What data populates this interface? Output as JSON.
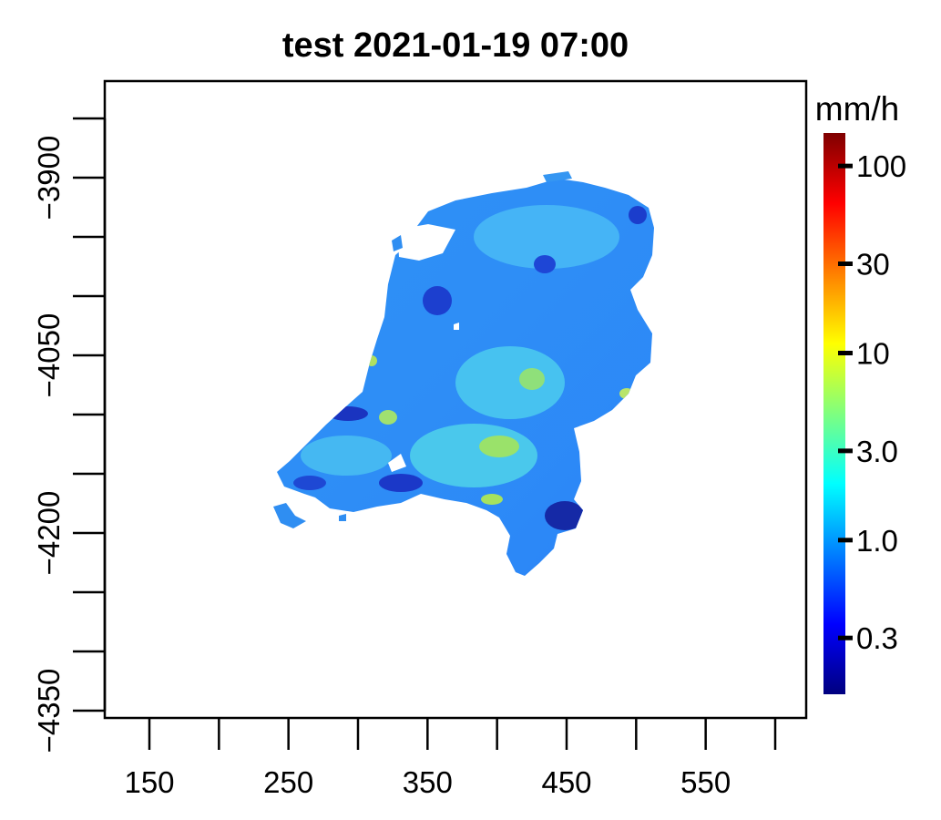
{
  "chart_data": {
    "type": "heatmap",
    "title": "test 2021-01-19 07:00",
    "xlabel": "",
    "ylabel": "",
    "x_ticks": [
      150,
      200,
      250,
      300,
      350,
      400,
      450,
      500,
      550,
      600
    ],
    "x_tick_labels": [
      "150",
      "250",
      "350",
      "450",
      "550"
    ],
    "x_tick_label_values": [
      150,
      250,
      350,
      450,
      550
    ],
    "xlim": [
      116,
      600
    ],
    "y_ticks": [
      -3850,
      -3900,
      -3950,
      -4000,
      -4050,
      -4100,
      -4150,
      -4200,
      -4250,
      -4300,
      -4350
    ],
    "y_tick_labels": [
      "−3900",
      "−4050",
      "−4200",
      "−4350"
    ],
    "y_tick_label_values": [
      -3900,
      -4050,
      -4200,
      -4350
    ],
    "ylim": [
      -4355,
      -3830
    ],
    "colorbar": {
      "unit": "mm/h",
      "scale": "log",
      "range": [
        0.15,
        150
      ],
      "tick_values": [
        100,
        30,
        10,
        3,
        1,
        0.3
      ],
      "tick_labels": [
        "100",
        "30",
        "10",
        "3.0",
        "1.0",
        "0.3"
      ],
      "colors": [
        "#00007f",
        "#0000ff",
        "#007fff",
        "#00ffff",
        "#7fff7f",
        "#ffff00",
        "#ff7f00",
        "#ff0000",
        "#7f0000"
      ]
    },
    "grid": false,
    "field_description": "Precipitation rate over the Netherlands; mostly 1–3 mm/h, patches up to ~5 mm/h"
  }
}
